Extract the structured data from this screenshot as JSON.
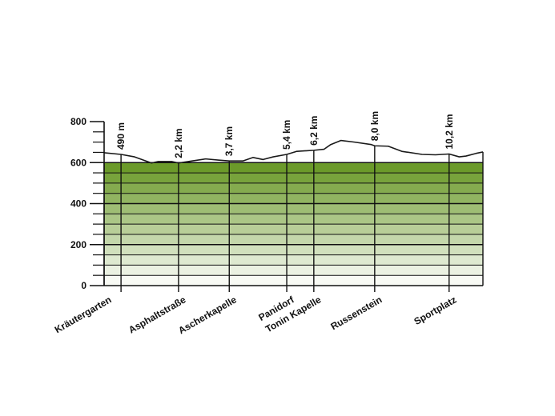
{
  "chart_data": {
    "type": "area",
    "title": "",
    "xlabel": "",
    "ylabel": "",
    "ylim": [
      0,
      800
    ],
    "yticks": [
      "0",
      "200",
      "400",
      "600",
      "800"
    ],
    "xlim": [
      0,
      11.2
    ],
    "stops": [
      {
        "name": "Kräutergarten",
        "km": 0.0
      },
      {
        "name": "Asphaltstraße",
        "km": 2.2
      },
      {
        "name": "Ascherkapelle",
        "km": 3.7
      },
      {
        "name": "Panidorf",
        "km": 5.4
      },
      {
        "name": "Tonin Kapelle",
        "km": 6.2
      },
      {
        "name": "Russenstein",
        "km": 8.0
      },
      {
        "name": "Sportplatz",
        "km": 10.2
      }
    ],
    "markers": [
      {
        "label": "490 m",
        "km": 0.5
      },
      {
        "label": "2,2 km",
        "km": 2.2
      },
      {
        "label": "3,7 km",
        "km": 3.7
      },
      {
        "label": "5,4 km",
        "km": 5.4
      },
      {
        "label": "6,2 km",
        "km": 6.2
      },
      {
        "label": "8,0 km",
        "km": 8.0
      },
      {
        "label": "10,2 km",
        "km": 10.2
      }
    ],
    "profile": {
      "x": [
        0,
        0.5,
        0.9,
        1.4,
        1.6,
        2.0,
        2.2,
        2.6,
        3.0,
        3.4,
        3.7,
        4.1,
        4.4,
        4.7,
        5.0,
        5.4,
        5.7,
        6.2,
        6.5,
        6.7,
        7.0,
        7.4,
        7.9,
        8.0,
        8.4,
        8.8,
        9.4,
        9.8,
        10.2,
        10.5,
        10.7,
        11.0,
        11.2
      ],
      "y": [
        648,
        640,
        628,
        598,
        605,
        605,
        598,
        608,
        618,
        612,
        608,
        608,
        625,
        615,
        628,
        640,
        655,
        660,
        665,
        688,
        708,
        700,
        688,
        682,
        680,
        655,
        640,
        638,
        642,
        628,
        632,
        645,
        652
      ]
    },
    "line_color": "#1a1a1a",
    "fill_gradient": [
      "#ffffff",
      "#6b9a2a"
    ],
    "grid": true
  }
}
